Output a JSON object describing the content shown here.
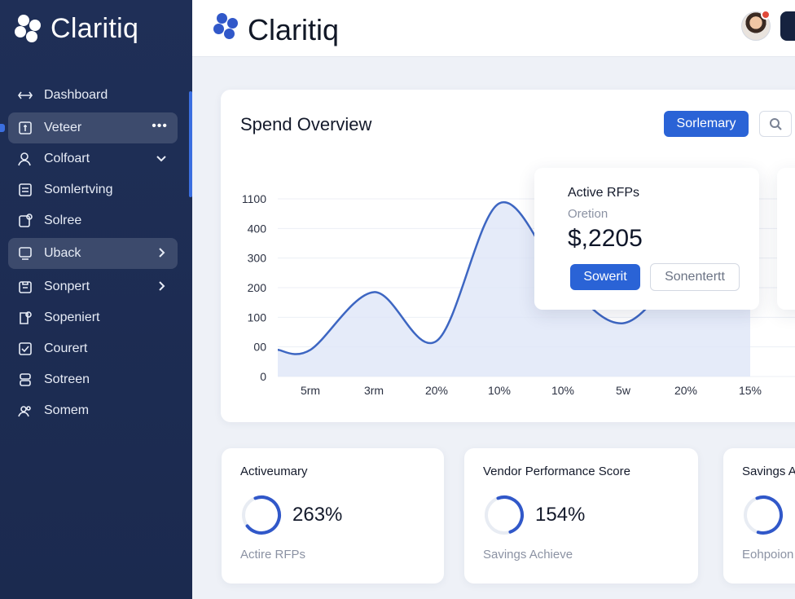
{
  "app": {
    "name": "Claritiq"
  },
  "sidebar": {
    "items": [
      {
        "label": "Dashboard",
        "icon": "arrows-icon"
      },
      {
        "label": "Veteer",
        "icon": "document-icon",
        "more": "•••"
      },
      {
        "label": "Colfoart",
        "icon": "user-icon"
      },
      {
        "label": "Somlertving",
        "icon": "list-icon"
      },
      {
        "label": "Solree",
        "icon": "settings-icon"
      },
      {
        "label": "Uback",
        "icon": "box-icon"
      },
      {
        "label": "Sonpert",
        "icon": "folder-icon"
      },
      {
        "label": "Sopeniert",
        "icon": "gear-doc-icon"
      },
      {
        "label": "Courert",
        "icon": "check-icon"
      },
      {
        "label": "Sotreen",
        "icon": "stack-icon"
      },
      {
        "label": "Somem",
        "icon": "people-icon"
      }
    ]
  },
  "spend": {
    "title": "Spend Overview",
    "summary_button": "Sorlemary",
    "popup": {
      "title": "Active RFPs",
      "subtitle": "Oretion",
      "value": "$,2205",
      "primary_button": "Sowerit",
      "secondary_button": "Sonentertt"
    }
  },
  "chart_data": {
    "type": "area",
    "x": [
      "5rm",
      "3rm",
      "20%",
      "10%",
      "10%",
      "5w",
      "20%",
      "15%"
    ],
    "y_tick_labels": [
      "1100",
      "400",
      "300",
      "200",
      "100",
      "00",
      "0"
    ],
    "series": [
      {
        "values": [
          60,
          190,
          80,
          390,
          220,
          120,
          250,
          340
        ]
      }
    ],
    "colors": {
      "line": "#3d66c2",
      "fill": "#dfe6f7"
    }
  },
  "stats": [
    {
      "title": "Activeumary",
      "value": "263%",
      "foot": "Actire RFPs",
      "progress": 0.7
    },
    {
      "title": "Vendor Performance Score",
      "value": "154%",
      "foot": "Savings Achieve",
      "progress": 0.5
    },
    {
      "title": "Savings A",
      "value": "",
      "foot": "Eohpoion",
      "progress": 0.6
    }
  ]
}
